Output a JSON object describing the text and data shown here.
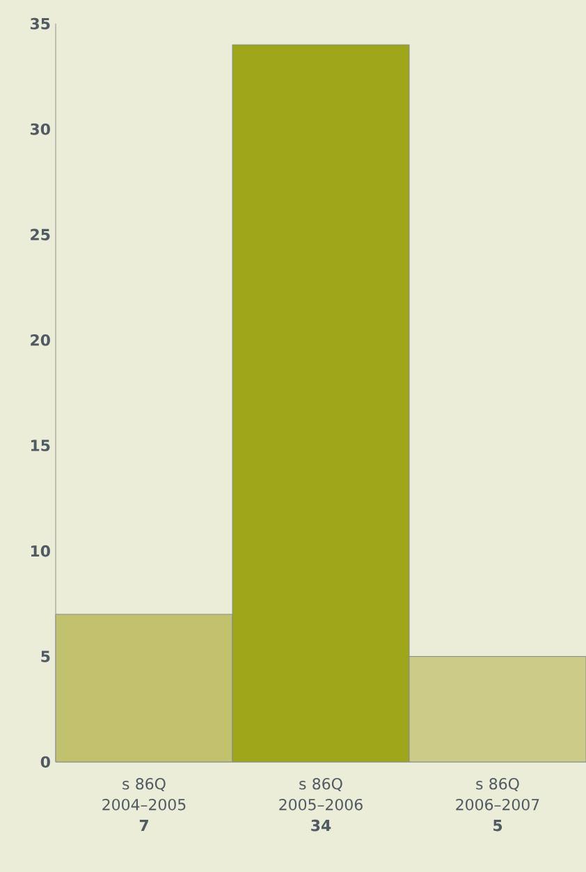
{
  "chart_data": {
    "type": "bar",
    "categories": [
      "s 86Q 2004–2005",
      "s 86Q 2005–2006",
      "s 86Q 2006–2007"
    ],
    "values": [
      7,
      34,
      5
    ],
    "colors": [
      "#c2c16e",
      "#a0a619",
      "#cccb87"
    ],
    "ylim": [
      0,
      35
    ],
    "yticks": [
      0,
      5,
      10,
      15,
      20,
      25,
      30,
      35
    ],
    "data_labels": true
  }
}
